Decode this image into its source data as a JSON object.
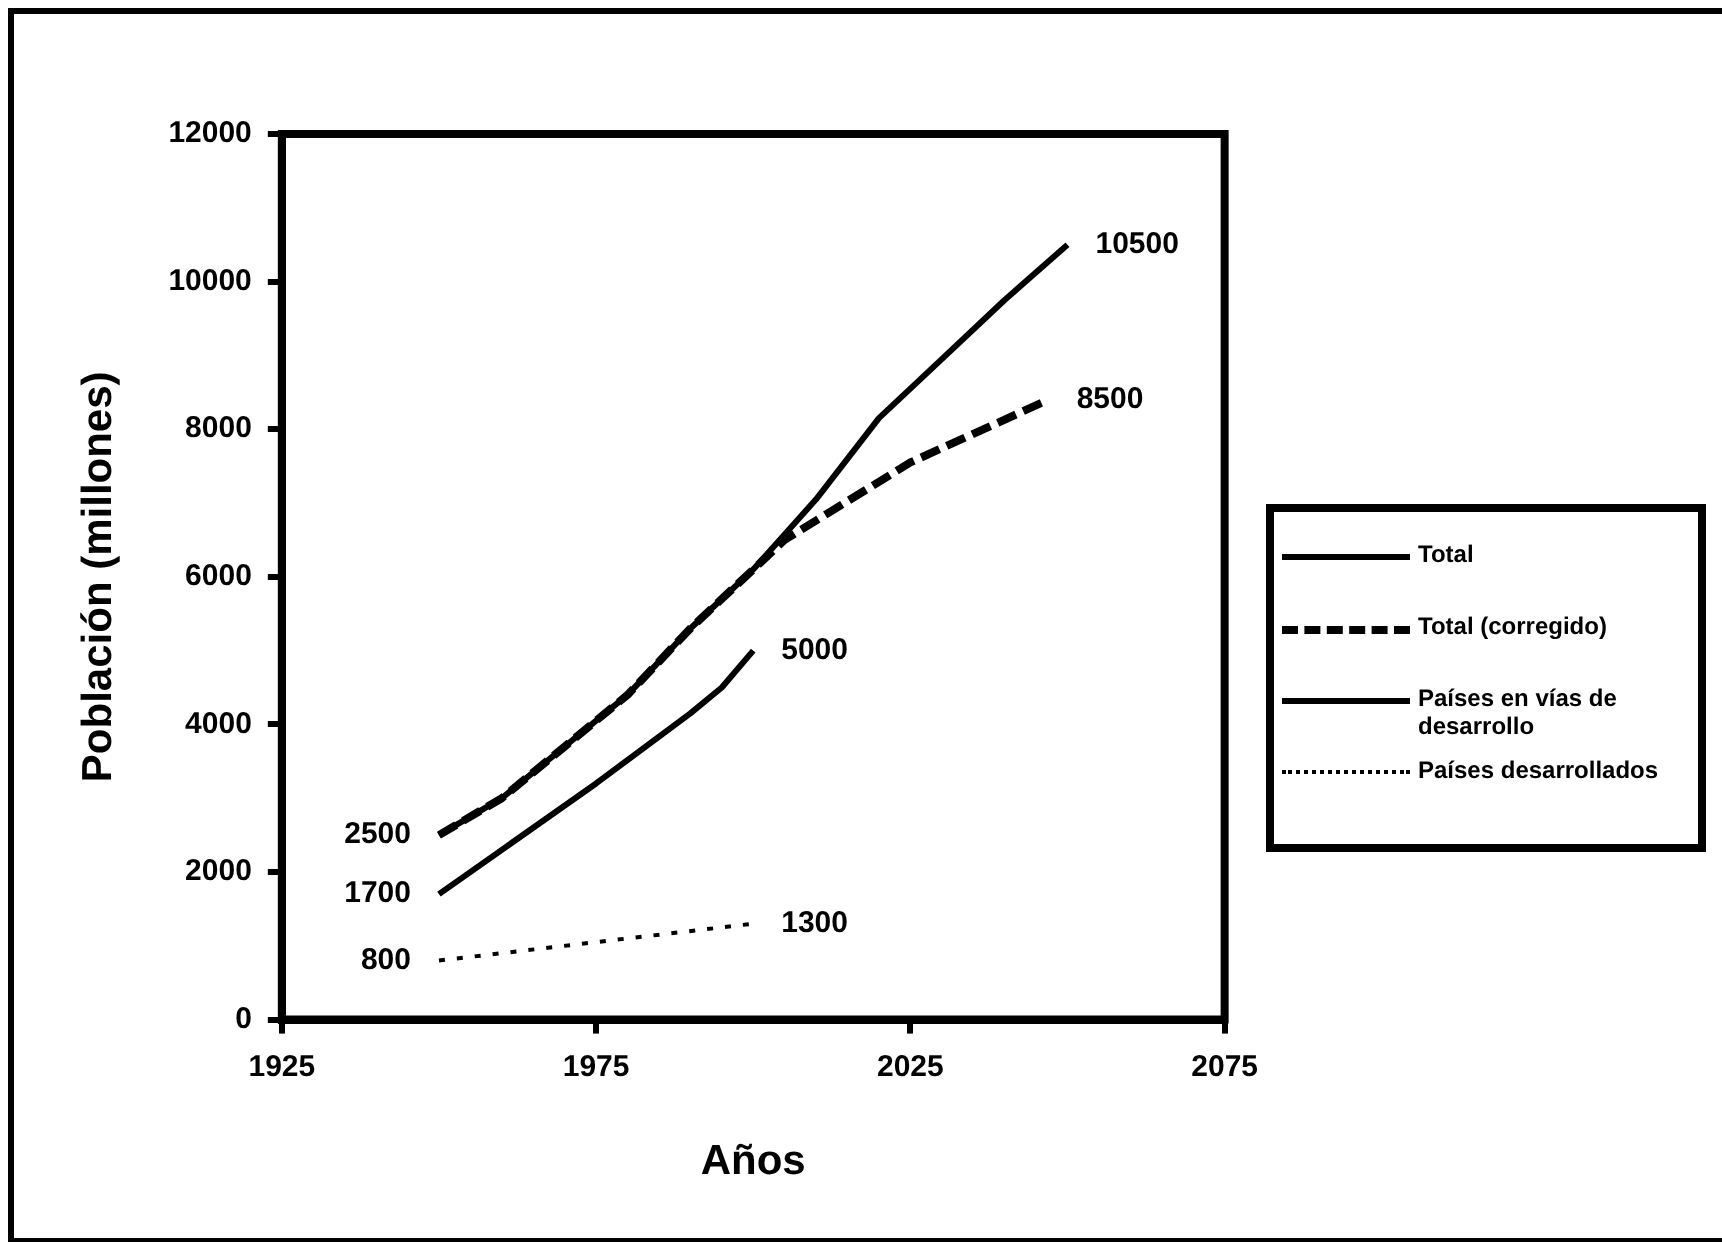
{
  "chart_data": {
    "type": "line",
    "xlabel": "Años",
    "ylabel": "Población (millones)",
    "xlim": [
      1925,
      2075
    ],
    "xticks": [
      1925,
      1975,
      2025,
      2075
    ],
    "ylim": [
      0,
      12000
    ],
    "yticks": [
      0,
      2000,
      4000,
      6000,
      8000,
      10000,
      12000
    ],
    "grid": false,
    "legend": "right",
    "marker": "none",
    "series": [
      {
        "name": "Total",
        "color": "#000000",
        "line_style": "solid",
        "x": [
          1950,
          1960,
          1970,
          1980,
          1990,
          1995,
          2000,
          2010,
          2020,
          2030,
          2040,
          2050
        ],
        "values": [
          2500,
          3000,
          3700,
          4400,
          5300,
          5700,
          6100,
          7050,
          8150,
          8950,
          9750,
          10500
        ]
      },
      {
        "name": "Total (corregido)",
        "color": "#000000",
        "line_style": "dashed",
        "x": [
          1950,
          1960,
          1970,
          1980,
          1990,
          1995,
          2000,
          2005,
          2025,
          2047
        ],
        "values": [
          2500,
          3000,
          3700,
          4400,
          5300,
          5700,
          6100,
          6500,
          7550,
          8400
        ]
      },
      {
        "name": "Países en vías de desarrollo",
        "color": "#000000",
        "line_style": "solid",
        "x": [
          1950,
          1975,
          1990,
          1995,
          2000
        ],
        "values": [
          1700,
          3200,
          4150,
          4500,
          5000
        ]
      },
      {
        "name": "Países desarrollados",
        "color": "#000000",
        "line_style": "dotted",
        "x": [
          1950,
          1975,
          2000
        ],
        "values": [
          800,
          1050,
          1300
        ]
      }
    ],
    "annotations": [
      {
        "text": "2500",
        "x": 1950,
        "y": 2500
      },
      {
        "text": "1700",
        "x": 1950,
        "y": 1700
      },
      {
        "text": "800",
        "x": 1950,
        "y": 800
      },
      {
        "text": "10500",
        "x": 2050,
        "y": 10500
      },
      {
        "text": "8500",
        "x": 2047,
        "y": 8400
      },
      {
        "text": "5000",
        "x": 2000,
        "y": 5000
      },
      {
        "text": "1300",
        "x": 2000,
        "y": 1300
      }
    ]
  }
}
